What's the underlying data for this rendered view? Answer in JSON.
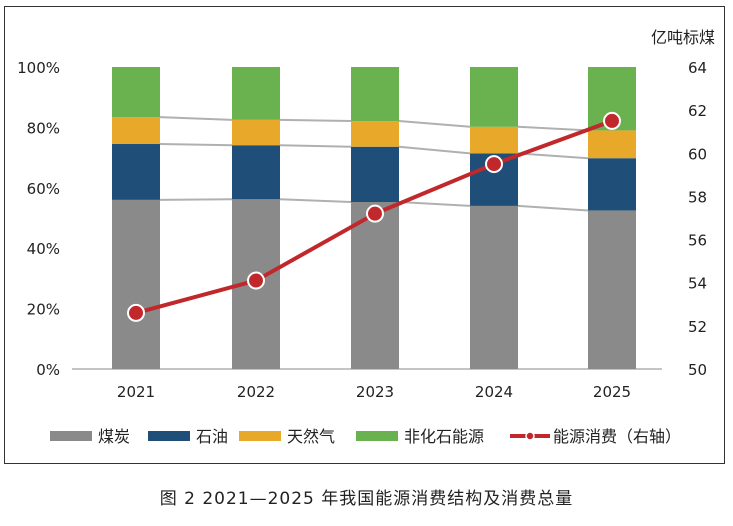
{
  "caption": "图 2  2021—2025 年我国能源消费结构及消费总量",
  "colors": {
    "coal": "#8a8a8a",
    "oil": "#1f4e79",
    "gas": "#e8a92a",
    "nonfossil": "#6ab150",
    "line": "#c0282c",
    "connector": "#b0b0b0"
  },
  "chart_data": {
    "type": "bar",
    "stacked": true,
    "categories": [
      "2021",
      "2022",
      "2023",
      "2024",
      "2025"
    ],
    "series": [
      {
        "name": "煤炭",
        "values": [
          56,
          56.2,
          55.3,
          54,
          52.5
        ]
      },
      {
        "name": "石油",
        "values": [
          18.5,
          17.9,
          18.3,
          17.4,
          17.3
        ]
      },
      {
        "name": "天然气",
        "values": [
          8.9,
          8.4,
          8.5,
          8.8,
          9.2
        ]
      },
      {
        "name": "非化石能源",
        "values": [
          16.6,
          17.5,
          17.9,
          19.8,
          21
        ]
      }
    ],
    "line_series": {
      "name": "能源消费（右轴）",
      "axis": "right",
      "values": [
        52.6,
        54.1,
        57.2,
        59.5,
        61.5
      ]
    },
    "left_axis": {
      "ylim": [
        0,
        100
      ],
      "ticks": [
        "0%",
        "20%",
        "40%",
        "60%",
        "80%",
        "100%"
      ]
    },
    "right_axis": {
      "ylabel": "亿吨标煤",
      "ylim": [
        50,
        64
      ],
      "ticks": [
        "50",
        "52",
        "54",
        "56",
        "58",
        "60",
        "62",
        "64"
      ]
    },
    "legend_position": "bottom",
    "grid": false
  }
}
